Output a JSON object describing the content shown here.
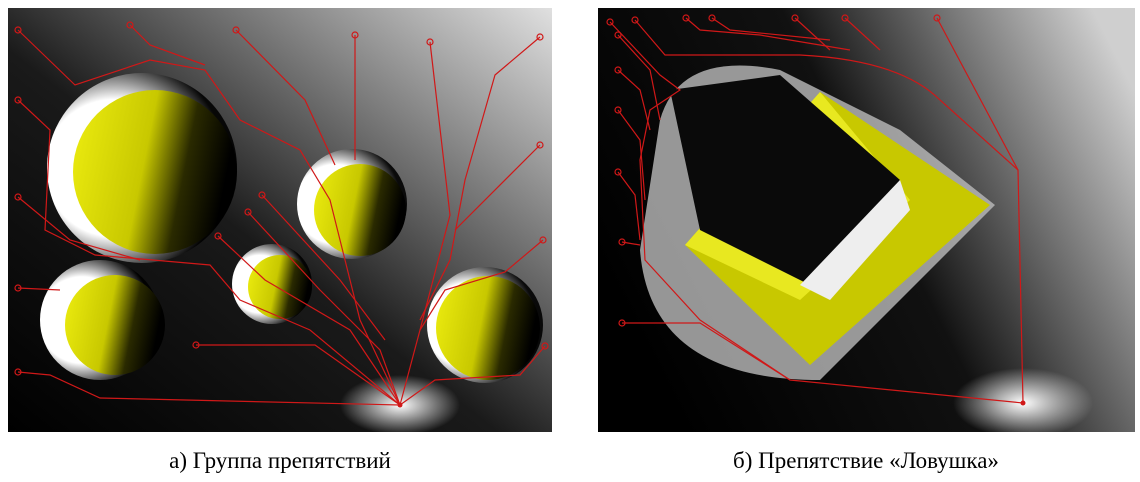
{
  "figures": [
    {
      "caption": "а) Группа препятствий"
    },
    {
      "caption": "б) Препятствие «Ловушка»"
    }
  ]
}
